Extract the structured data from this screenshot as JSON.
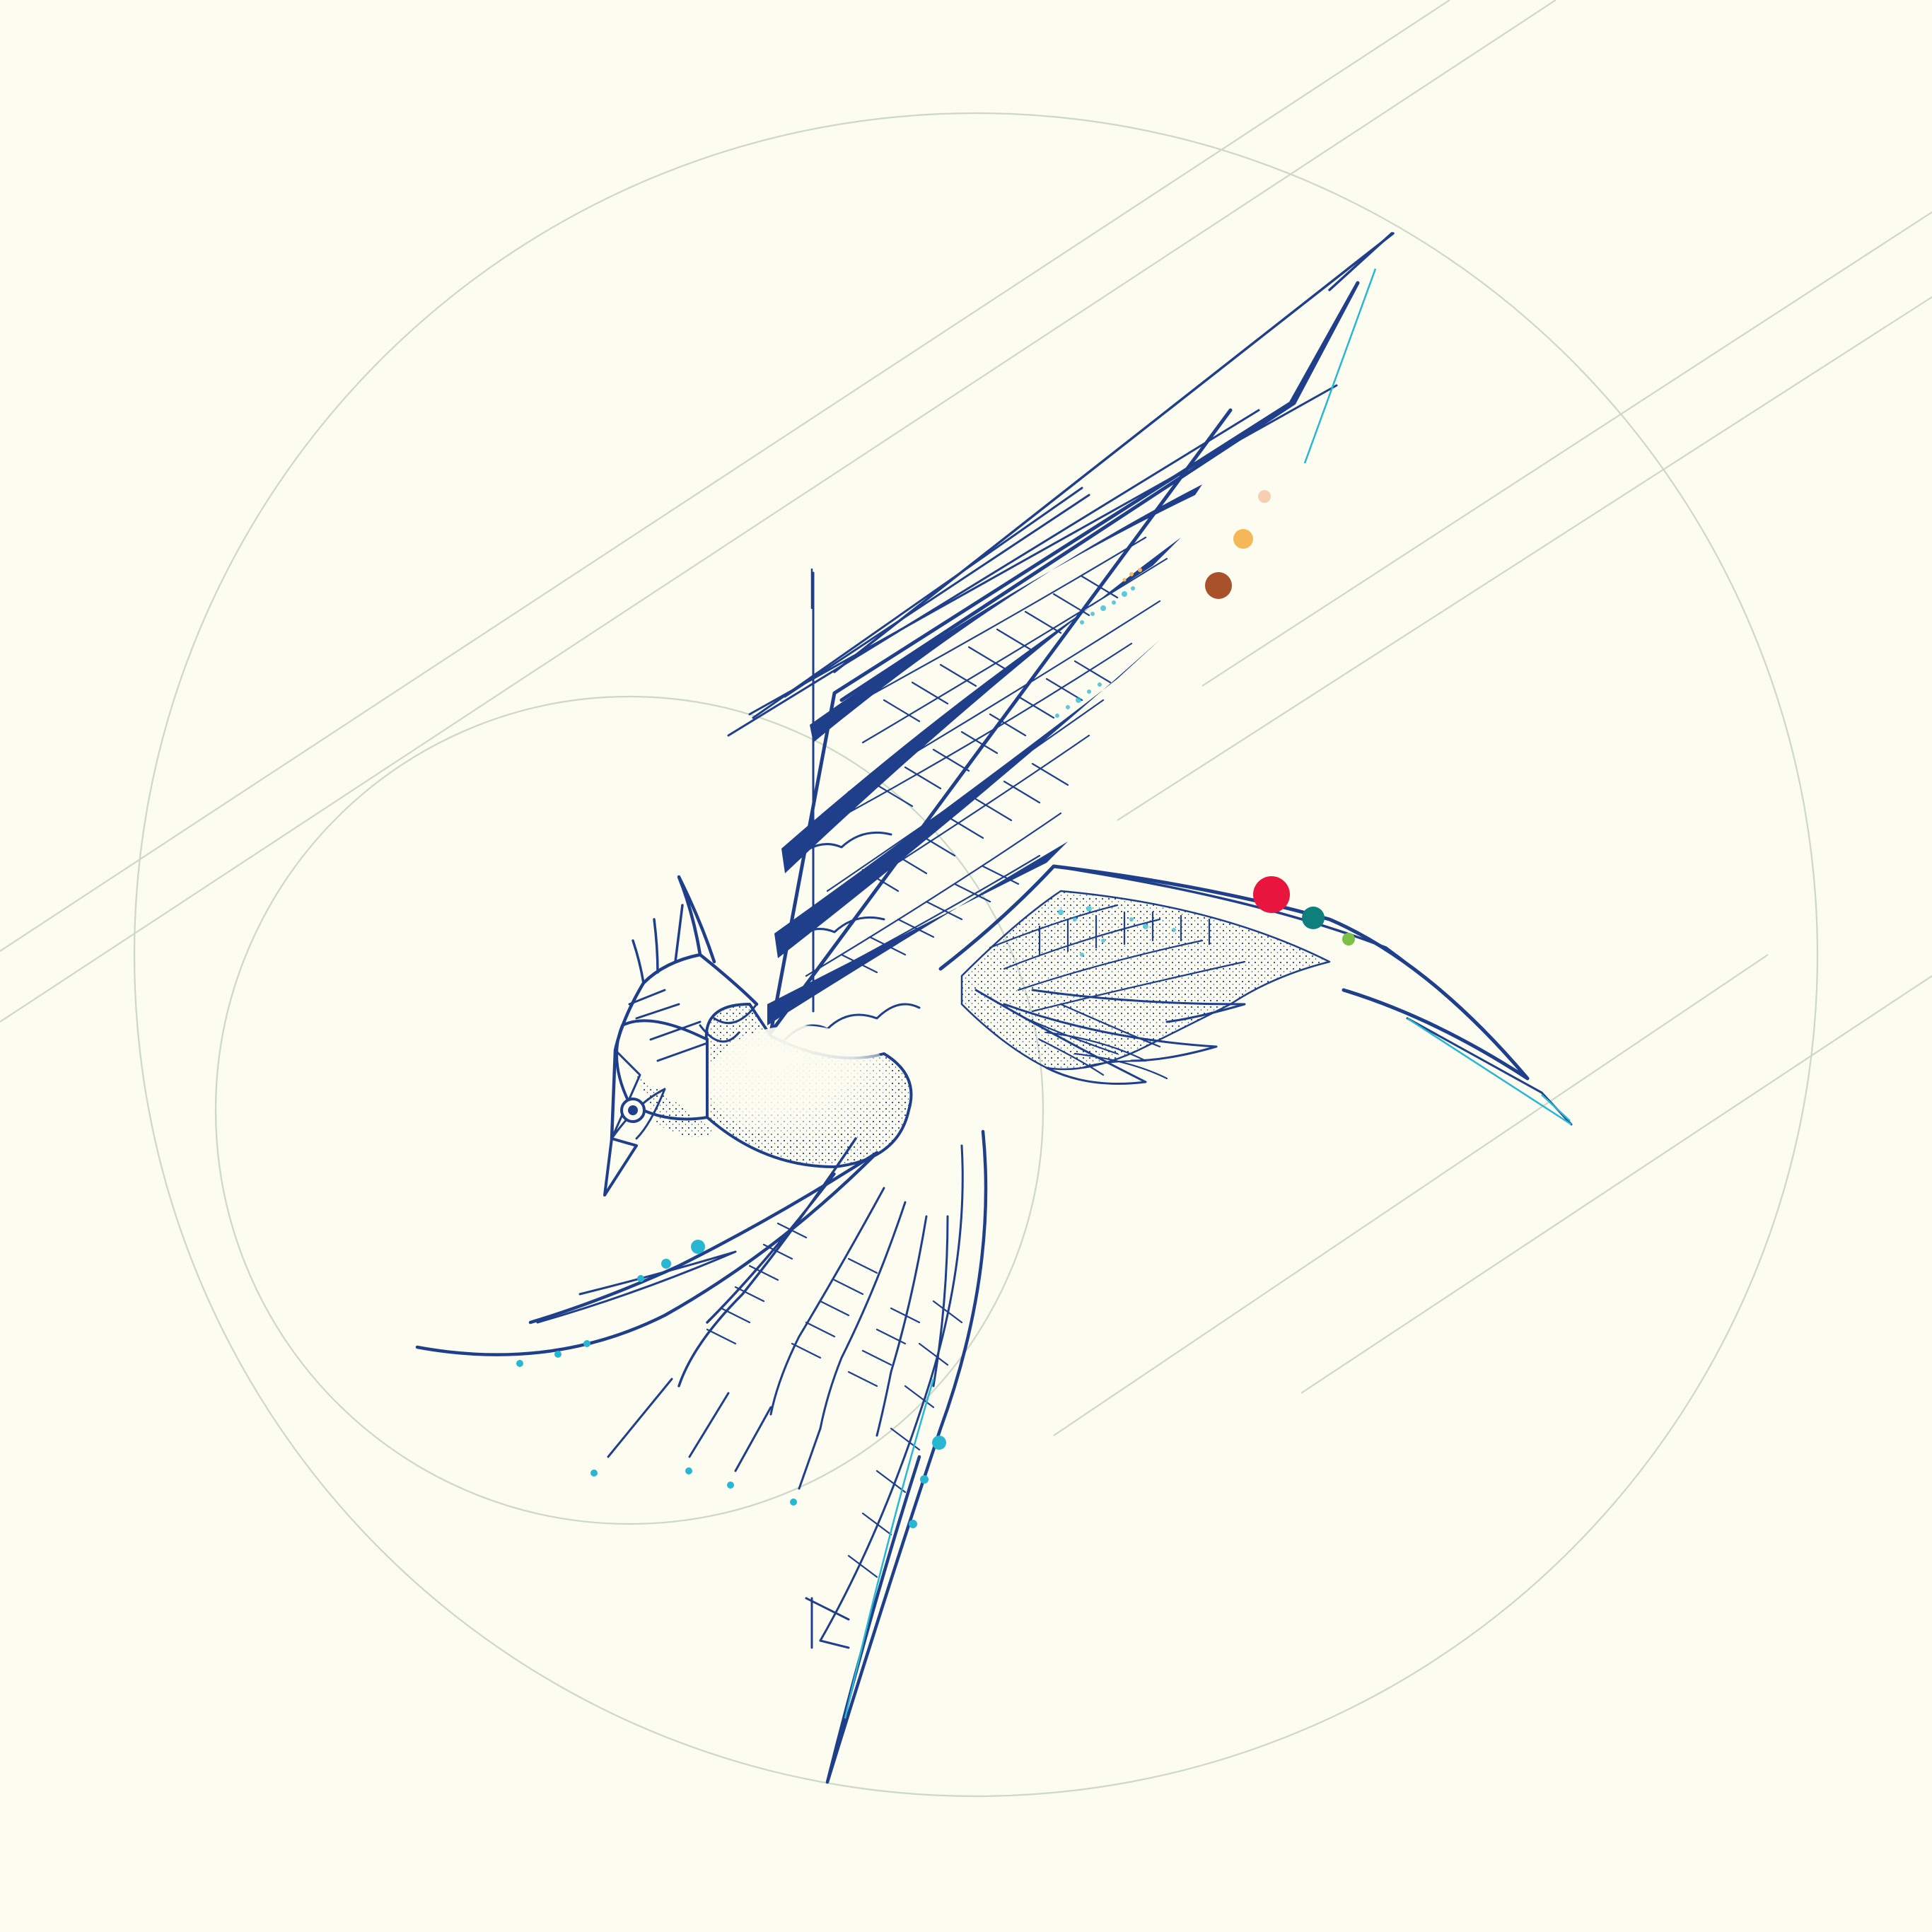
{
  "artwork": {
    "subject": "bird",
    "style": "blue line-art engraving with stippling",
    "colors": {
      "background": "#fcfcf0",
      "ink": "#1f3f8a",
      "guide_lines": "#cdd8c8",
      "accent_cyan": "#27b7d2",
      "dot_red": "#e8163f",
      "dot_teal": "#0f7f7e",
      "dot_green": "#7cc04a",
      "dot_brown": "#a8512a",
      "dot_orange": "#f5b757",
      "dot_peach": "#f6cfb3"
    }
  }
}
